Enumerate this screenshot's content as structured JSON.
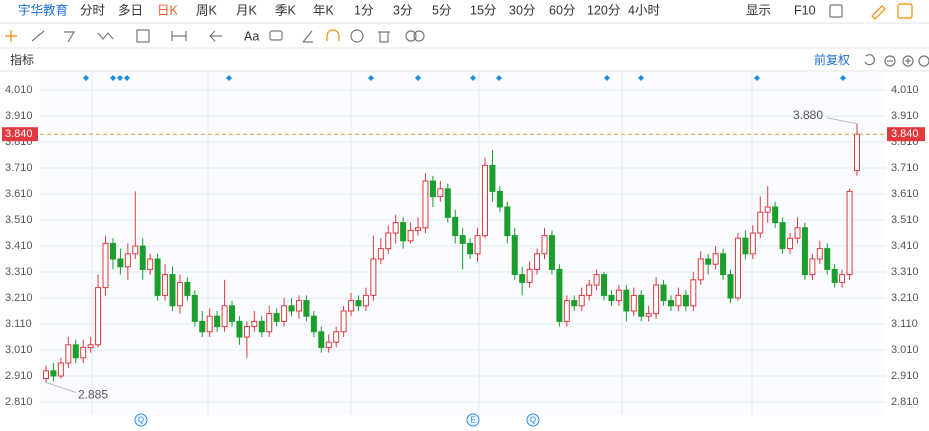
{
  "toolbar": {
    "stock": "宇华教育",
    "periods": [
      "分时",
      "多日",
      "日K",
      "周K",
      "月K",
      "季K",
      "年K",
      "1分",
      "3分",
      "5分",
      "15分",
      "30分",
      "60分",
      "120分",
      "4小时"
    ],
    "selected": "日K",
    "display": "显示",
    "f10": "F10",
    "text_tool": "Aa"
  },
  "indicator_label": "指标",
  "adjust_label": "前复权",
  "chart_data": {
    "type": "candlestick",
    "open": [
      2.9,
      2.93,
      2.91,
      2.96,
      3.03,
      2.98,
      3.02,
      3.03,
      3.25,
      3.42,
      3.36,
      3.33,
      3.38,
      3.41,
      3.32,
      3.36,
      3.22,
      3.3,
      3.18,
      3.27,
      3.22,
      3.12,
      3.08,
      3.14,
      3.1,
      3.18,
      3.12,
      3.06,
      3.1,
      3.12,
      3.08,
      3.15,
      3.12,
      3.18,
      3.16,
      3.2,
      3.14,
      3.08,
      3.02,
      3.04,
      3.08,
      3.16,
      3.2,
      3.18,
      3.22,
      3.36,
      3.4,
      3.46,
      3.5,
      3.43,
      3.47,
      3.48,
      3.66,
      3.6,
      3.63,
      3.52,
      3.45,
      3.42,
      3.38,
      3.45,
      3.72,
      3.62,
      3.56,
      3.45,
      3.3,
      3.27,
      3.32,
      3.38,
      3.45,
      3.32,
      3.12,
      3.2,
      3.18,
      3.22,
      3.26,
      3.3,
      3.22,
      3.2,
      3.24,
      3.16,
      3.22,
      3.14,
      3.15,
      3.26,
      3.2,
      3.18,
      3.22,
      3.18,
      3.28,
      3.36,
      3.34,
      3.38,
      3.3,
      3.21,
      3.44,
      3.38,
      3.46,
      3.54,
      3.56,
      3.5,
      3.4,
      3.44,
      3.48,
      3.3,
      3.36,
      3.4,
      3.32,
      3.27,
      3.3,
      3.7
    ],
    "close": [
      2.93,
      2.91,
      2.96,
      3.03,
      2.98,
      3.02,
      3.03,
      3.25,
      3.42,
      3.36,
      3.33,
      3.38,
      3.41,
      3.32,
      3.36,
      3.22,
      3.3,
      3.18,
      3.27,
      3.22,
      3.12,
      3.08,
      3.14,
      3.1,
      3.18,
      3.12,
      3.06,
      3.1,
      3.12,
      3.08,
      3.15,
      3.12,
      3.18,
      3.16,
      3.2,
      3.14,
      3.08,
      3.02,
      3.04,
      3.08,
      3.16,
      3.2,
      3.18,
      3.22,
      3.36,
      3.4,
      3.46,
      3.5,
      3.43,
      3.47,
      3.48,
      3.66,
      3.6,
      3.63,
      3.52,
      3.45,
      3.42,
      3.38,
      3.45,
      3.72,
      3.62,
      3.56,
      3.45,
      3.3,
      3.27,
      3.32,
      3.38,
      3.45,
      3.32,
      3.12,
      3.2,
      3.18,
      3.22,
      3.26,
      3.3,
      3.22,
      3.2,
      3.24,
      3.16,
      3.22,
      3.14,
      3.15,
      3.26,
      3.2,
      3.18,
      3.22,
      3.18,
      3.28,
      3.36,
      3.34,
      3.38,
      3.3,
      3.21,
      3.44,
      3.38,
      3.46,
      3.54,
      3.56,
      3.5,
      3.4,
      3.44,
      3.48,
      3.3,
      3.36,
      3.4,
      3.32,
      3.27,
      3.3,
      3.62,
      3.84
    ],
    "high": [
      2.95,
      2.96,
      2.98,
      3.06,
      3.05,
      3.05,
      3.06,
      3.3,
      3.45,
      3.44,
      3.4,
      3.42,
      3.62,
      3.44,
      3.38,
      3.38,
      3.34,
      3.33,
      3.3,
      3.29,
      3.24,
      3.16,
      3.17,
      3.16,
      3.28,
      3.2,
      3.14,
      3.12,
      3.16,
      3.14,
      3.18,
      3.17,
      3.21,
      3.21,
      3.22,
      3.22,
      3.16,
      3.1,
      3.07,
      3.1,
      3.18,
      3.23,
      3.22,
      3.25,
      3.45,
      3.44,
      3.49,
      3.53,
      3.52,
      3.5,
      3.52,
      3.69,
      3.68,
      3.66,
      3.65,
      3.55,
      3.48,
      3.44,
      3.48,
      3.75,
      3.78,
      3.64,
      3.58,
      3.48,
      3.33,
      3.35,
      3.4,
      3.48,
      3.47,
      3.34,
      3.22,
      3.22,
      3.25,
      3.28,
      3.32,
      3.31,
      3.24,
      3.26,
      3.26,
      3.25,
      3.24,
      3.18,
      3.29,
      3.28,
      3.22,
      3.25,
      3.24,
      3.31,
      3.39,
      3.38,
      3.41,
      3.4,
      3.32,
      3.46,
      3.47,
      3.49,
      3.6,
      3.64,
      3.58,
      3.52,
      3.46,
      3.52,
      3.5,
      3.38,
      3.43,
      3.42,
      3.34,
      3.32,
      3.63,
      3.88
    ],
    "low": [
      2.885,
      2.89,
      2.9,
      2.94,
      2.96,
      2.96,
      3.0,
      3.02,
      3.22,
      3.32,
      3.3,
      3.28,
      3.36,
      3.28,
      3.3,
      3.2,
      3.2,
      3.16,
      3.15,
      3.2,
      3.1,
      3.06,
      3.06,
      3.08,
      3.08,
      3.1,
      3.03,
      2.98,
      3.08,
      3.06,
      3.06,
      3.1,
      3.1,
      3.14,
      3.13,
      3.12,
      3.06,
      3.0,
      3.0,
      3.02,
      3.06,
      3.14,
      3.16,
      3.16,
      3.2,
      3.34,
      3.38,
      3.42,
      3.4,
      3.42,
      3.45,
      3.46,
      3.56,
      3.58,
      3.5,
      3.42,
      3.32,
      3.36,
      3.35,
      3.44,
      3.58,
      3.54,
      3.42,
      3.28,
      3.22,
      3.25,
      3.3,
      3.36,
      3.3,
      3.1,
      3.1,
      3.16,
      3.16,
      3.2,
      3.24,
      3.2,
      3.18,
      3.18,
      3.12,
      3.14,
      3.12,
      3.12,
      3.13,
      3.18,
      3.16,
      3.16,
      3.16,
      3.16,
      3.26,
      3.3,
      3.32,
      3.28,
      3.19,
      3.2,
      3.36,
      3.36,
      3.44,
      3.5,
      3.48,
      3.38,
      3.38,
      3.42,
      3.28,
      3.28,
      3.34,
      3.3,
      3.25,
      3.25,
      3.28,
      3.68
    ],
    "up_color": "#e0393e",
    "down_color": "#1a9e2c",
    "ylim": [
      2.81,
      4.01
    ],
    "yticks": [
      {
        "value": 4.01,
        "label": "4.010"
      },
      {
        "value": 3.91,
        "label": "3.910"
      },
      {
        "value": 3.81,
        "label": "3.810"
      },
      {
        "value": 3.71,
        "label": "3.710"
      },
      {
        "value": 3.61,
        "label": "3.610"
      },
      {
        "value": 3.51,
        "label": "3.510"
      },
      {
        "value": 3.41,
        "label": "3.410"
      },
      {
        "value": 3.31,
        "label": "3.310"
      },
      {
        "value": 3.21,
        "label": "3.210"
      },
      {
        "value": 3.11,
        "label": "3.110"
      },
      {
        "value": 3.01,
        "label": "3.010"
      },
      {
        "value": 2.91,
        "label": "2.910"
      },
      {
        "value": 2.81,
        "label": "2.810"
      }
    ],
    "last_price": {
      "value": 3.84,
      "label": "3.840"
    },
    "high_label": {
      "value": 3.88,
      "label": "3.880"
    },
    "low_label": {
      "value": 2.885,
      "label": "2.885"
    },
    "event_markers": [
      "Q",
      "E",
      "Q"
    ],
    "grid": true
  }
}
